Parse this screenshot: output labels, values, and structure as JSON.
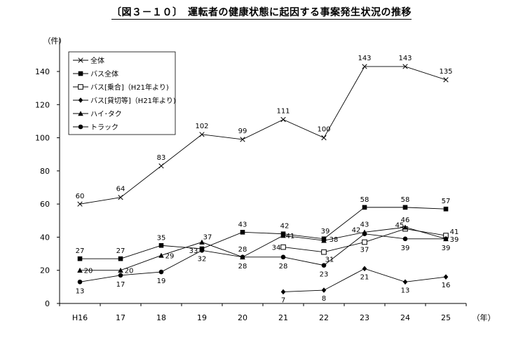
{
  "chart_data": {
    "type": "line",
    "title": "〔図３－１０〕　運転者の健康状態に起因する事案発生状況の推移",
    "ylabel": "（件）",
    "xlabel": "（年）",
    "categories": [
      "H16",
      "17",
      "18",
      "19",
      "20",
      "21",
      "22",
      "23",
      "24",
      "25"
    ],
    "ylim": [
      0,
      150
    ],
    "yticks": [
      0,
      20,
      40,
      60,
      80,
      100,
      120,
      140
    ],
    "grid": false,
    "legend_position": "top-left",
    "series": [
      {
        "name": "全体",
        "marker": "x",
        "values": [
          60,
          64,
          83,
          102,
          99,
          111,
          100,
          143,
          143,
          135
        ]
      },
      {
        "name": "バス全体",
        "marker": "square",
        "values": [
          27,
          27,
          35,
          33,
          43,
          42,
          39,
          58,
          58,
          57
        ]
      },
      {
        "name": "バス[乗合]（H21年より)",
        "marker": "open-square",
        "values": [
          null,
          null,
          null,
          null,
          null,
          34,
          31,
          37,
          45,
          41
        ]
      },
      {
        "name": "バス[貸切等]（H21年より)",
        "marker": "diamond",
        "values": [
          null,
          null,
          null,
          null,
          null,
          7,
          8,
          21,
          13,
          16
        ]
      },
      {
        "name": "ハイ･タク",
        "marker": "triangle",
        "values": [
          20,
          20,
          29,
          37,
          28,
          41,
          38,
          43,
          46,
          39
        ]
      },
      {
        "name": "トラック",
        "marker": "circle",
        "values": [
          13,
          17,
          19,
          32,
          28,
          28,
          23,
          42,
          39,
          39
        ]
      }
    ]
  }
}
